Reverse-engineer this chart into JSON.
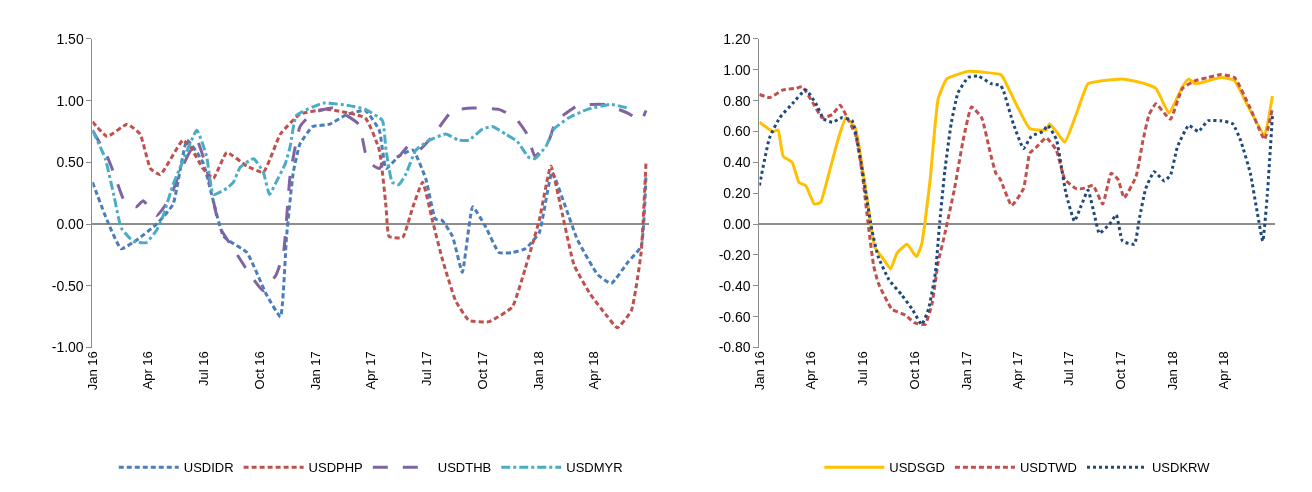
{
  "chart_data": [
    {
      "type": "line",
      "legend": "bottom",
      "xlim": [
        "2016-01-01",
        "2018-07-01"
      ],
      "xticks": [
        {
          "value": "2016-01-01",
          "label": "Jan 16"
        },
        {
          "value": "2016-04-01",
          "label": "Apr 16"
        },
        {
          "value": "2016-07-01",
          "label": "Jul 16"
        },
        {
          "value": "2016-10-01",
          "label": "Oct 16"
        },
        {
          "value": "2017-01-01",
          "label": "Jan 17"
        },
        {
          "value": "2017-04-01",
          "label": "Apr 17"
        },
        {
          "value": "2017-07-01",
          "label": "Jul 17"
        },
        {
          "value": "2017-10-01",
          "label": "Oct 17"
        },
        {
          "value": "2018-01-01",
          "label": "Jan 18"
        },
        {
          "value": "2018-04-01",
          "label": "Apr 18"
        }
      ],
      "ylim": [
        -1,
        1.5
      ],
      "yticks": [
        {
          "value": -1,
          "label": "-1.00"
        },
        {
          "value": -0.5,
          "label": "-0.50"
        },
        {
          "value": 0,
          "label": "0.00"
        },
        {
          "value": 0.5,
          "label": "0.50"
        },
        {
          "value": 1,
          "label": "1.00"
        },
        {
          "value": 1.5,
          "label": "1.50"
        }
      ],
      "series": [
        {
          "name": "USDIDR",
          "color": "#4a7ebb",
          "line_style": "dashed",
          "x": [
            "2016-01-01",
            "2016-01-25",
            "2016-02-17",
            "2016-03-13",
            "2016-04-15",
            "2016-05-12",
            "2016-06-04",
            "2016-06-30",
            "2016-08-03",
            "2016-09-10",
            "2016-10-12",
            "2016-11-04",
            "2016-11-14",
            "2016-11-25",
            "2016-12-06",
            "2016-12-27",
            "2017-01-24",
            "2017-02-21",
            "2017-03-23",
            "2017-04-15",
            "2017-04-26",
            "2017-05-17",
            "2017-06-09",
            "2017-06-30",
            "2017-07-16",
            "2017-07-27",
            "2017-08-13",
            "2017-08-29",
            "2017-09-15",
            "2017-10-06",
            "2017-10-28",
            "2017-11-19",
            "2017-12-10",
            "2018-01-02",
            "2018-01-23",
            "2018-02-14",
            "2018-03-06",
            "2018-04-08",
            "2018-04-30",
            "2018-05-27",
            "2018-06-18",
            "2018-06-26"
          ],
          "values": [
            0.34,
            0.03,
            -0.2,
            -0.13,
            0,
            0.16,
            0.68,
            0.5,
            -0.1,
            -0.23,
            -0.57,
            -0.75,
            -0.1,
            0.42,
            0.65,
            0.79,
            0.81,
            0.89,
            0.92,
            0.76,
            0.45,
            0.55,
            0.6,
            0.37,
            0.04,
            0.03,
            -0.1,
            -0.39,
            0.14,
            -0.02,
            -0.23,
            -0.23,
            -0.2,
            -0.07,
            0.42,
            0.14,
            -0.13,
            -0.41,
            -0.48,
            -0.31,
            -0.18,
            0.4
          ]
        },
        {
          "name": "USDPHP",
          "color": "#c0504d",
          "line_style": "dashed",
          "x": [
            "2016-01-01",
            "2016-01-25",
            "2016-02-27",
            "2016-03-19",
            "2016-04-05",
            "2016-04-21",
            "2016-05-28",
            "2016-06-09",
            "2016-06-30",
            "2016-07-17",
            "2016-08-08",
            "2016-09-10",
            "2016-10-07",
            "2016-11-04",
            "2016-12-06",
            "2017-01-19",
            "2017-03-23",
            "2017-04-15",
            "2017-04-26",
            "2017-05-01",
            "2017-05-23",
            "2017-06-09",
            "2017-06-25",
            "2017-07-11",
            "2017-07-27",
            "2017-08-18",
            "2017-09-09",
            "2017-10-12",
            "2017-11-19",
            "2017-12-10",
            "2018-01-02",
            "2018-01-21",
            "2018-02-09",
            "2018-02-28",
            "2018-03-27",
            "2018-04-24",
            "2018-05-10",
            "2018-06-02",
            "2018-06-18",
            "2018-06-26"
          ],
          "values": [
            0.83,
            0.71,
            0.81,
            0.73,
            0.45,
            0.4,
            0.68,
            0.63,
            0.45,
            0.37,
            0.58,
            0.47,
            0.42,
            0.73,
            0.89,
            0.93,
            0.86,
            0.6,
            0.14,
            -0.1,
            -0.11,
            0.14,
            0.34,
            0.03,
            -0.28,
            -0.62,
            -0.78,
            -0.79,
            -0.67,
            -0.36,
            0.03,
            0.47,
            0.08,
            -0.33,
            -0.57,
            -0.75,
            -0.84,
            -0.7,
            -0.23,
            0.5
          ]
        },
        {
          "name": "USDTHB",
          "color": "#8064a2",
          "line_style": "long_dashed",
          "x": [
            "2016-01-01",
            "2016-01-25",
            "2016-02-06",
            "2016-02-22",
            "2016-03-13",
            "2016-03-24",
            "2016-04-15",
            "2016-05-07",
            "2016-05-23",
            "2016-06-20",
            "2016-07-06",
            "2016-07-27",
            "2016-08-19",
            "2016-09-10",
            "2016-10-07",
            "2016-10-28",
            "2016-11-09",
            "2016-11-20",
            "2016-12-06",
            "2016-12-27",
            "2017-01-29",
            "2017-03-12",
            "2017-03-23",
            "2017-03-29",
            "2017-04-15",
            "2017-04-26",
            "2017-05-17",
            "2017-06-03",
            "2017-06-19",
            "2017-07-11",
            "2017-08-13",
            "2017-09-15",
            "2017-10-28",
            "2017-11-24",
            "2017-12-13",
            "2017-12-26",
            "2018-01-18",
            "2018-01-29",
            "2018-03-06",
            "2018-04-19",
            "2018-05-27",
            "2018-06-18",
            "2018-06-26"
          ],
          "values": [
            0.76,
            0.55,
            0.4,
            0.19,
            0.14,
            0.19,
            0.07,
            0.21,
            0.42,
            0.68,
            0.45,
            -0.02,
            -0.2,
            -0.37,
            -0.54,
            -0.41,
            -0.23,
            0.4,
            0.79,
            0.9,
            0.94,
            0.81,
            0.58,
            0.5,
            0.45,
            0.53,
            0.55,
            0.64,
            0.6,
            0.71,
            0.92,
            0.94,
            0.93,
            0.86,
            0.73,
            0.55,
            0.68,
            0.83,
            0.96,
            0.97,
            0.9,
            0.84,
            0.92
          ]
        },
        {
          "name": "USDMYR",
          "color": "#4bacc6",
          "line_style": "dash_dot",
          "x": [
            "2016-01-01",
            "2016-01-22",
            "2016-02-06",
            "2016-02-17",
            "2016-03-08",
            "2016-03-29",
            "2016-04-15",
            "2016-04-26",
            "2016-05-12",
            "2016-05-23",
            "2016-06-20",
            "2016-07-06",
            "2016-07-17",
            "2016-08-08",
            "2016-08-19",
            "2016-08-30",
            "2016-09-21",
            "2016-10-07",
            "2016-10-17",
            "2016-10-28",
            "2016-11-12",
            "2016-11-20",
            "2016-11-30",
            "2017-01-13",
            "2017-02-25",
            "2017-03-23",
            "2017-04-20",
            "2017-04-26",
            "2017-05-06",
            "2017-05-17",
            "2017-05-28",
            "2017-06-14",
            "2017-07-06",
            "2017-08-02",
            "2017-08-23",
            "2017-09-09",
            "2017-10-01",
            "2017-10-17",
            "2017-11-08",
            "2017-11-27",
            "2017-12-16",
            "2017-12-26",
            "2018-01-13",
            "2018-01-26",
            "2018-02-19",
            "2018-03-22",
            "2018-04-30",
            "2018-05-27"
          ],
          "values": [
            0.76,
            0.53,
            0.21,
            -0.03,
            -0.14,
            -0.15,
            -0.05,
            0.07,
            0.32,
            0.45,
            0.76,
            0.55,
            0.24,
            0.29,
            0.34,
            0.46,
            0.53,
            0.42,
            0.24,
            0.34,
            0.49,
            0.63,
            0.88,
            0.98,
            0.96,
            0.93,
            0.84,
            0.6,
            0.34,
            0.32,
            0.4,
            0.6,
            0.68,
            0.73,
            0.68,
            0.68,
            0.77,
            0.79,
            0.73,
            0.67,
            0.54,
            0.53,
            0.63,
            0.77,
            0.86,
            0.93,
            0.97,
            0.94
          ]
        }
      ]
    },
    {
      "type": "line",
      "legend": "bottom",
      "xlim": [
        "2016-01-01",
        "2018-07-01"
      ],
      "xticks": [
        {
          "value": "2016-01-01",
          "label": "Jan 16"
        },
        {
          "value": "2016-04-01",
          "label": "Apr 16"
        },
        {
          "value": "2016-07-01",
          "label": "Jul 16"
        },
        {
          "value": "2016-10-01",
          "label": "Oct 16"
        },
        {
          "value": "2017-01-01",
          "label": "Jan 17"
        },
        {
          "value": "2017-04-01",
          "label": "Apr 17"
        },
        {
          "value": "2017-07-01",
          "label": "Jul 17"
        },
        {
          "value": "2017-10-01",
          "label": "Oct 17"
        },
        {
          "value": "2018-01-01",
          "label": "Jan 18"
        },
        {
          "value": "2018-04-01",
          "label": "Apr 18"
        }
      ],
      "ylim": [
        -0.8,
        1.2
      ],
      "yticks": [
        {
          "value": -0.8,
          "label": "-0.80"
        },
        {
          "value": -0.6,
          "label": "-0.60"
        },
        {
          "value": -0.4,
          "label": "-0.40"
        },
        {
          "value": -0.2,
          "label": "-0.20"
        },
        {
          "value": 0,
          "label": "0.00"
        },
        {
          "value": 0.2,
          "label": "0.20"
        },
        {
          "value": 0.4,
          "label": "0.40"
        },
        {
          "value": 0.6,
          "label": "0.60"
        },
        {
          "value": 0.8,
          "label": "0.80"
        },
        {
          "value": 1,
          "label": "1.00"
        },
        {
          "value": 1.2,
          "label": "1.20"
        }
      ],
      "series": [
        {
          "name": "USDSGD",
          "color": "#ffc000",
          "line_style": "solid",
          "x": [
            "2016-01-01",
            "2016-01-25",
            "2016-02-03",
            "2016-02-12",
            "2016-02-28",
            "2016-03-11",
            "2016-03-23",
            "2016-04-07",
            "2016-04-18",
            "2016-05-03",
            "2016-05-20",
            "2016-06-02",
            "2016-06-19",
            "2016-06-30",
            "2016-07-12",
            "2016-07-23",
            "2016-08-08",
            "2016-08-20",
            "2016-08-31",
            "2016-09-18",
            "2016-09-30",
            "2016-10-05",
            "2016-10-14",
            "2016-10-20",
            "2016-10-29",
            "2016-11-12",
            "2016-11-27",
            "2017-01-04",
            "2017-03-02",
            "2017-03-07",
            "2017-03-31",
            "2017-04-23",
            "2017-05-22",
            "2017-05-28",
            "2017-06-09",
            "2017-06-24",
            "2017-07-14",
            "2017-08-04",
            "2017-08-30",
            "2017-10-04",
            "2017-11-03",
            "2017-12-02",
            "2017-12-25",
            "2018-01-18",
            "2018-01-29",
            "2018-02-10",
            "2018-03-27",
            "2018-04-20",
            "2018-05-13",
            "2018-06-12",
            "2018-06-26"
          ],
          "values": [
            0.66,
            0.6,
            0.61,
            0.44,
            0.4,
            0.27,
            0.25,
            0.13,
            0.14,
            0.33,
            0.56,
            0.69,
            0.62,
            0.39,
            0.1,
            -0.15,
            -0.23,
            -0.29,
            -0.19,
            -0.13,
            -0.19,
            -0.21,
            -0.13,
            0.02,
            0.29,
            0.81,
            0.94,
            0.99,
            0.97,
            0.95,
            0.77,
            0.62,
            0.61,
            0.65,
            0.6,
            0.53,
            0.71,
            0.91,
            0.93,
            0.94,
            0.92,
            0.88,
            0.72,
            0.89,
            0.94,
            0.91,
            0.95,
            0.93,
            0.77,
            0.58,
            0.83
          ]
        },
        {
          "name": "USDTWD",
          "color": "#c0504d",
          "line_style": "dashed",
          "x": [
            "2016-01-01",
            "2016-01-19",
            "2016-02-12",
            "2016-03-05",
            "2016-03-17",
            "2016-04-04",
            "2016-04-21",
            "2016-05-09",
            "2016-05-23",
            "2016-06-07",
            "2016-06-19",
            "2016-06-30",
            "2016-07-12",
            "2016-07-21",
            "2016-07-29",
            "2016-08-22",
            "2016-09-15",
            "2016-10-02",
            "2016-10-20",
            "2016-11-01",
            "2016-11-12",
            "2016-11-24",
            "2016-12-11",
            "2016-12-26",
            "2017-01-10",
            "2017-01-28",
            "2017-02-11",
            "2017-02-22",
            "2017-03-02",
            "2017-03-22",
            "2017-04-12",
            "2017-04-23",
            "2017-05-05",
            "2017-05-22",
            "2017-06-09",
            "2017-06-24",
            "2017-07-14",
            "2017-07-25",
            "2017-08-13",
            "2017-08-30",
            "2017-09-14",
            "2017-09-26",
            "2017-10-07",
            "2017-10-28",
            "2017-11-09",
            "2017-11-20",
            "2017-12-02",
            "2017-12-19",
            "2017-12-28",
            "2018-01-18",
            "2018-02-10",
            "2018-03-04",
            "2018-03-27",
            "2018-04-20",
            "2018-05-18",
            "2018-06-12",
            "2018-06-26"
          ],
          "values": [
            0.84,
            0.82,
            0.87,
            0.88,
            0.89,
            0.79,
            0.69,
            0.71,
            0.77,
            0.67,
            0.58,
            0.35,
            -0.02,
            -0.27,
            -0.38,
            -0.55,
            -0.59,
            -0.64,
            -0.65,
            -0.52,
            -0.25,
            -0.06,
            0.23,
            0.54,
            0.76,
            0.69,
            0.48,
            0.33,
            0.29,
            0.12,
            0.23,
            0.46,
            0.5,
            0.56,
            0.48,
            0.29,
            0.23,
            0.23,
            0.25,
            0.13,
            0.33,
            0.29,
            0.17,
            0.31,
            0.54,
            0.71,
            0.78,
            0.71,
            0.68,
            0.88,
            0.93,
            0.95,
            0.97,
            0.95,
            0.75,
            0.55,
            0.75
          ]
        },
        {
          "name": "USDKRW",
          "color": "#1f497d",
          "line_style": "dotted",
          "x": [
            "2016-01-01",
            "2016-01-19",
            "2016-02-06",
            "2016-02-28",
            "2016-03-23",
            "2016-04-10",
            "2016-04-24",
            "2016-05-09",
            "2016-05-26",
            "2016-06-13",
            "2016-06-25",
            "2016-07-06",
            "2016-07-18",
            "2016-07-29",
            "2016-08-17",
            "2016-09-09",
            "2016-09-27",
            "2016-10-14",
            "2016-10-26",
            "2016-11-07",
            "2016-11-15",
            "2016-11-24",
            "2016-12-05",
            "2016-12-17",
            "2017-01-04",
            "2017-01-22",
            "2017-02-14",
            "2017-03-02",
            "2017-03-07",
            "2017-03-25",
            "2017-04-12",
            "2017-04-26",
            "2017-05-16",
            "2017-05-25",
            "2017-06-09",
            "2017-06-18",
            "2017-06-26",
            "2017-07-11",
            "2017-07-23",
            "2017-08-04",
            "2017-08-16",
            "2017-08-24",
            "2017-09-11",
            "2017-09-23",
            "2017-10-04",
            "2017-10-25",
            "2017-11-03",
            "2017-11-14",
            "2017-11-29",
            "2017-12-17",
            "2017-12-28",
            "2018-01-09",
            "2018-01-29",
            "2018-02-15",
            "2018-03-04",
            "2018-03-27",
            "2018-04-17",
            "2018-05-01",
            "2018-05-18",
            "2018-05-30",
            "2018-06-09",
            "2018-06-17",
            "2018-06-26"
          ],
          "values": [
            0.25,
            0.56,
            0.69,
            0.78,
            0.87,
            0.78,
            0.68,
            0.66,
            0.69,
            0.67,
            0.48,
            0.23,
            -0.04,
            -0.21,
            -0.36,
            -0.46,
            -0.55,
            -0.65,
            -0.55,
            -0.32,
            0.02,
            0.35,
            0.65,
            0.85,
            0.95,
            0.96,
            0.91,
            0.9,
            0.87,
            0.65,
            0.49,
            0.57,
            0.6,
            0.64,
            0.55,
            0.37,
            0.2,
            0.02,
            0.12,
            0.22,
            0.05,
            -0.06,
            0,
            0.06,
            -0.11,
            -0.13,
            0.04,
            0.23,
            0.34,
            0.28,
            0.32,
            0.5,
            0.64,
            0.6,
            0.67,
            0.67,
            0.65,
            0.54,
            0.33,
            0.08,
            -0.11,
            0.19,
            0.7
          ]
        }
      ]
    }
  ]
}
